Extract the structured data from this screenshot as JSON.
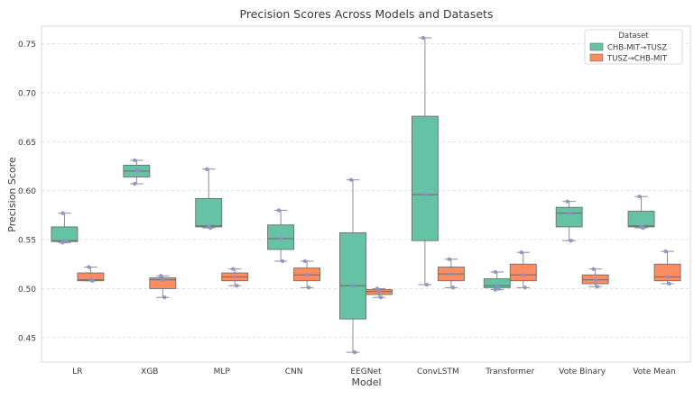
{
  "chart_data": {
    "type": "box",
    "title": "Precision Scores Across Models and Datasets",
    "xlabel": "Model",
    "ylabel": "Precision Score",
    "ylim": [
      0.425,
      0.768
    ],
    "yticks": [
      0.45,
      0.5,
      0.55,
      0.6,
      0.65,
      0.7,
      0.75
    ],
    "ytick_labels": [
      "0.45",
      "0.50",
      "0.55",
      "0.60",
      "0.65",
      "0.70",
      "0.75"
    ],
    "grid": "horizontal dashed",
    "legend": {
      "title": "Dataset",
      "placement": "top-right"
    },
    "categories": [
      "LR",
      "XGB",
      "MLP",
      "CNN",
      "EEGNet",
      "ConvLSTM",
      "Transformer",
      "Vote Binary",
      "Vote Mean"
    ],
    "series": [
      {
        "name": "CHB-MIT→TUSZ",
        "color": "#66c2a5",
        "boxes": [
          {
            "min": 0.547,
            "q1": 0.548,
            "median": 0.549,
            "q3": 0.563,
            "max": 0.577,
            "points": [
              0.577,
              0.549,
              0.548,
              0.547
            ]
          },
          {
            "min": 0.607,
            "q1": 0.614,
            "median": 0.62,
            "q3": 0.626,
            "max": 0.631,
            "points": [
              0.631,
              0.621,
              0.62,
              0.607
            ]
          },
          {
            "min": 0.562,
            "q1": 0.563,
            "median": 0.564,
            "q3": 0.592,
            "max": 0.622,
            "points": [
              0.622,
              0.563,
              0.562
            ]
          },
          {
            "min": 0.528,
            "q1": 0.54,
            "median": 0.551,
            "q3": 0.565,
            "max": 0.58,
            "points": [
              0.58,
              0.551,
              0.528
            ]
          },
          {
            "min": 0.435,
            "q1": 0.469,
            "median": 0.503,
            "q3": 0.557,
            "max": 0.611,
            "points": [
              0.611,
              0.503,
              0.435
            ]
          },
          {
            "min": 0.504,
            "q1": 0.549,
            "median": 0.596,
            "q3": 0.676,
            "max": 0.756,
            "points": [
              0.756,
              0.596,
              0.504
            ]
          },
          {
            "min": 0.499,
            "q1": 0.501,
            "median": 0.503,
            "q3": 0.51,
            "max": 0.517,
            "points": [
              0.517,
              0.503,
              0.5,
              0.499
            ]
          },
          {
            "min": 0.549,
            "q1": 0.563,
            "median": 0.577,
            "q3": 0.583,
            "max": 0.589,
            "points": [
              0.589,
              0.577,
              0.549
            ]
          },
          {
            "min": 0.562,
            "q1": 0.563,
            "median": 0.564,
            "q3": 0.579,
            "max": 0.594,
            "points": [
              0.594,
              0.563,
              0.562
            ]
          }
        ]
      },
      {
        "name": "TUSZ→CHB-MIT",
        "color": "#fc8d62",
        "boxes": [
          {
            "min": 0.508,
            "q1": 0.508,
            "median": 0.509,
            "q3": 0.516,
            "max": 0.522,
            "points": [
              0.522,
              0.509,
              0.508
            ]
          },
          {
            "min": 0.491,
            "q1": 0.5,
            "median": 0.509,
            "q3": 0.511,
            "max": 0.513,
            "points": [
              0.513,
              0.509,
              0.491
            ]
          },
          {
            "min": 0.503,
            "q1": 0.508,
            "median": 0.512,
            "q3": 0.516,
            "max": 0.52,
            "points": [
              0.52,
              0.512,
              0.503
            ]
          },
          {
            "min": 0.501,
            "q1": 0.508,
            "median": 0.514,
            "q3": 0.521,
            "max": 0.528,
            "points": [
              0.528,
              0.514,
              0.501
            ]
          },
          {
            "min": 0.491,
            "q1": 0.494,
            "median": 0.497,
            "q3": 0.499,
            "max": 0.5,
            "points": [
              0.5,
              0.497,
              0.491
            ]
          },
          {
            "min": 0.501,
            "q1": 0.508,
            "median": 0.515,
            "q3": 0.522,
            "max": 0.53,
            "points": [
              0.53,
              0.515,
              0.501
            ]
          },
          {
            "min": 0.501,
            "q1": 0.508,
            "median": 0.514,
            "q3": 0.525,
            "max": 0.537,
            "points": [
              0.537,
              0.514,
              0.501
            ]
          },
          {
            "min": 0.502,
            "q1": 0.505,
            "median": 0.509,
            "q3": 0.514,
            "max": 0.52,
            "points": [
              0.52,
              0.509,
              0.502
            ]
          },
          {
            "min": 0.505,
            "q1": 0.508,
            "median": 0.512,
            "q3": 0.525,
            "max": 0.538,
            "points": [
              0.538,
              0.512,
              0.505
            ]
          }
        ]
      }
    ],
    "point_color": "#8a93c9"
  }
}
